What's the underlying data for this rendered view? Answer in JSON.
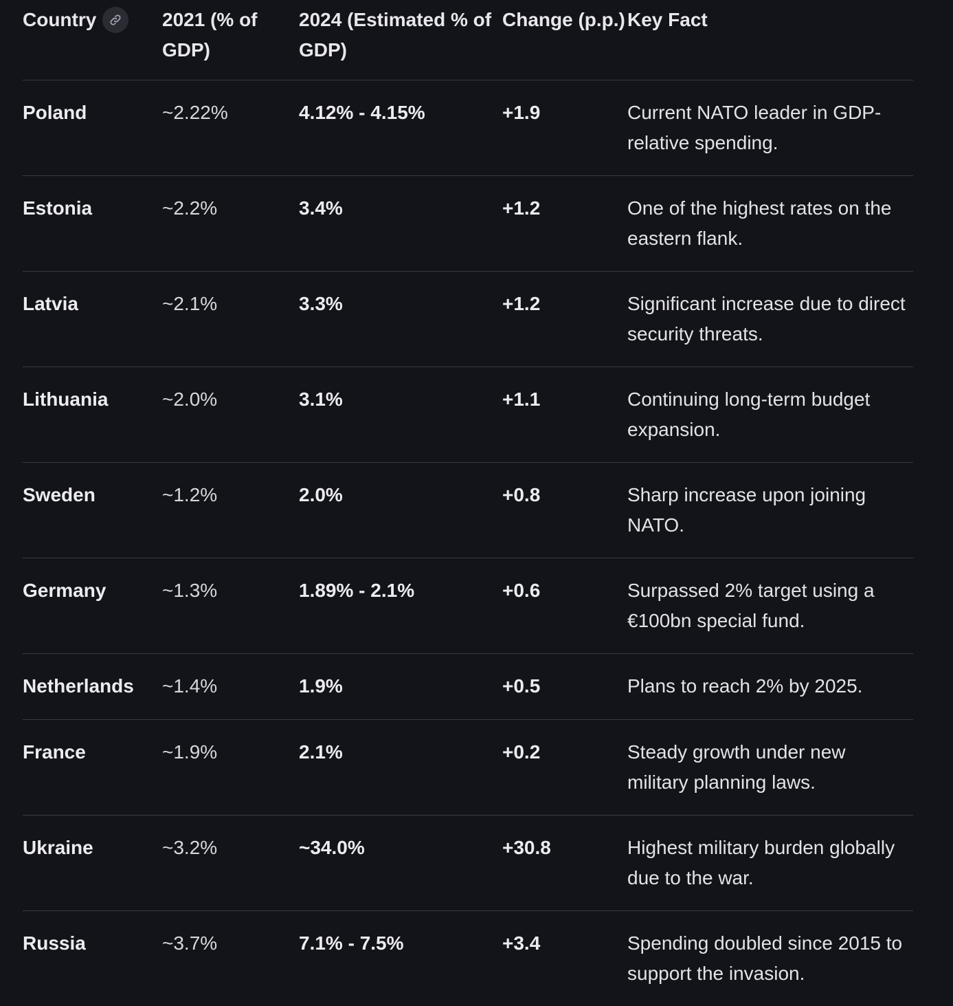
{
  "table": {
    "headers": {
      "country": "Country",
      "y2021": "2021 (% of GDP)",
      "y2024": "2024 (Estimated % of GDP)",
      "change": "Change (p.p.)",
      "fact": "Key Fact"
    },
    "copy_link_icon": "link-icon",
    "rows": [
      {
        "country": "Poland",
        "y2021": "~2.22%",
        "y2024": "4.12% - 4.15%",
        "change": "+1.9",
        "fact": "Current NATO leader in GDP-relative spending."
      },
      {
        "country": "Estonia",
        "y2021": "~2.2%",
        "y2024": "3.4%",
        "change": "+1.2",
        "fact": "One of the highest rates on the eastern flank."
      },
      {
        "country": "Latvia",
        "y2021": "~2.1%",
        "y2024": "3.3%",
        "change": "+1.2",
        "fact": "Significant increase due to direct security threats."
      },
      {
        "country": "Lithuania",
        "y2021": "~2.0%",
        "y2024": "3.1%",
        "change": "+1.1",
        "fact": "Continuing long-term budget expansion."
      },
      {
        "country": "Sweden",
        "y2021": "~1.2%",
        "y2024": "2.0%",
        "change": "+0.8",
        "fact": "Sharp increase upon joining NATO."
      },
      {
        "country": "Germany",
        "y2021": "~1.3%",
        "y2024": "1.89% - 2.1%",
        "change": "+0.6",
        "fact": "Surpassed 2% target using a €100bn special fund."
      },
      {
        "country": "Netherlands",
        "y2021": "~1.4%",
        "y2024": "1.9%",
        "change": "+0.5",
        "fact": "Plans to reach 2% by 2025."
      },
      {
        "country": "France",
        "y2021": "~1.9%",
        "y2024": "2.1%",
        "change": "+0.2",
        "fact": "Steady growth under new military planning laws."
      },
      {
        "country": "Ukraine",
        "y2021": "~3.2%",
        "y2024": "~34.0%",
        "change": "+30.8",
        "fact": "Highest military burden globally due to the war."
      },
      {
        "country": "Russia",
        "y2021": "~3.7%",
        "y2024": "7.1% - 7.5%",
        "change": "+3.4",
        "fact": "Spending doubled since 2015 to support the invasion."
      }
    ]
  }
}
